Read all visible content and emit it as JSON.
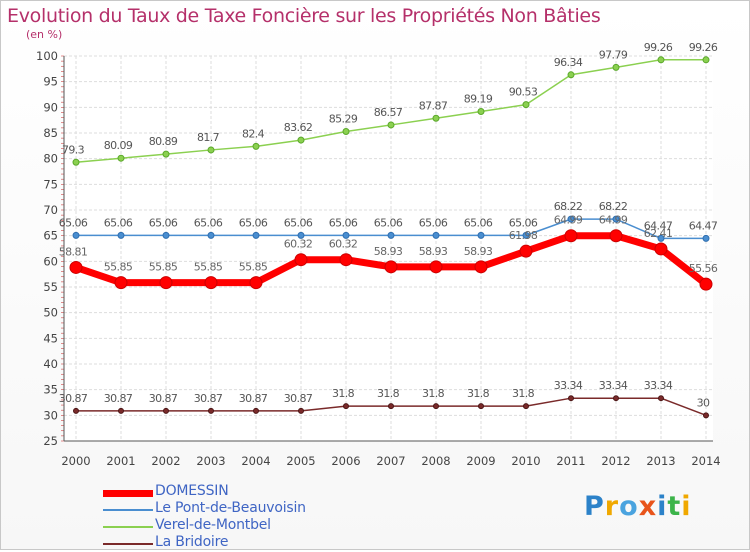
{
  "title": "Evolution du Taux de Taxe Foncière sur les Propriétés Non Bâties",
  "unit_label": "(en %)",
  "logo": {
    "text": "Proxiti",
    "letters": [
      {
        "ch": "P",
        "color": "#2c82c9"
      },
      {
        "ch": "r",
        "color": "#f0a800"
      },
      {
        "ch": "o",
        "color": "#4aa3df"
      },
      {
        "ch": "x",
        "color": "#e8541b"
      },
      {
        "ch": "i",
        "color": "#2c82c9"
      },
      {
        "ch": "t",
        "color": "#3cb44a"
      },
      {
        "ch": "i",
        "color": "#f0a800"
      }
    ]
  },
  "chart_data": {
    "type": "line",
    "title": "Evolution du Taux de Taxe Foncière sur les Propriétés Non Bâties",
    "ylabel": "(en %)",
    "ylim": [
      25,
      100
    ],
    "yticks": [
      25,
      30,
      35,
      40,
      45,
      50,
      55,
      60,
      65,
      70,
      75,
      80,
      85,
      90,
      95,
      100
    ],
    "x": [
      "2000",
      "2001",
      "2002",
      "2003",
      "2004",
      "2005",
      "2006",
      "2007",
      "2008",
      "2009",
      "2010",
      "2011",
      "2012",
      "2013",
      "2014"
    ],
    "grid": true,
    "legend_position": "bottom-left",
    "series": [
      {
        "name": "DOMESSIN",
        "color": "#ff0000",
        "label_color": "#666666",
        "values": [
          58.81,
          55.85,
          55.85,
          55.85,
          55.85,
          60.32,
          60.32,
          58.93,
          58.93,
          58.93,
          61.98,
          64.99,
          64.99,
          62.41,
          55.56
        ]
      },
      {
        "name": "Le Pont-de-Beauvoisin",
        "color": "#4a8ed0",
        "label_color": "#555555",
        "values": [
          65.06,
          65.06,
          65.06,
          65.06,
          65.06,
          65.06,
          65.06,
          65.06,
          65.06,
          65.06,
          65.06,
          68.22,
          68.22,
          64.47,
          64.47
        ]
      },
      {
        "name": "Verel-de-Montbel",
        "color": "#8bd050",
        "label_color": "#555555",
        "values": [
          79.3,
          80.09,
          80.89,
          81.7,
          82.4,
          83.62,
          85.29,
          86.57,
          87.87,
          89.19,
          90.53,
          96.34,
          97.79,
          99.26,
          99.26
        ]
      },
      {
        "name": "La Bridoire",
        "color": "#7a2a2a",
        "label_color": "#555555",
        "values": [
          30.87,
          30.87,
          30.87,
          30.87,
          30.87,
          30.87,
          31.8,
          31.8,
          31.8,
          31.8,
          31.8,
          33.34,
          33.34,
          33.34,
          30
        ]
      }
    ]
  }
}
